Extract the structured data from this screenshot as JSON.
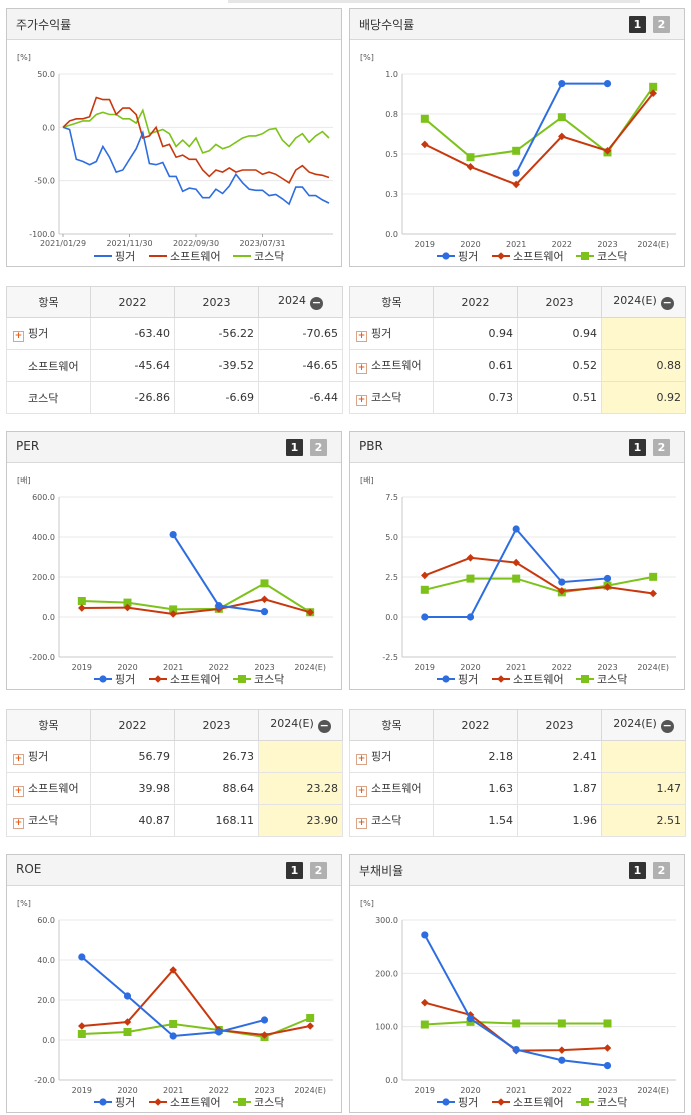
{
  "legend": [
    "핑거",
    "소프트웨어",
    "코스닥"
  ],
  "colors": {
    "s0": "#2d6de0",
    "s1": "#c8380e",
    "s2": "#7cc21a"
  },
  "pager": [
    "1",
    "2"
  ],
  "charts": [
    {
      "id": "stock",
      "title": "주가수익률",
      "unit": "[%]",
      "type": "line",
      "ylim": [
        -100,
        50
      ],
      "yticks": [
        "50.0",
        "0.0",
        "-50.0",
        "-100.0"
      ],
      "xlabels": [
        "2021/01/29",
        "2021/11/30",
        "2022/09/30",
        "2023/07/31"
      ],
      "series": [
        {
          "name": "핑거",
          "values": [
            0,
            -2,
            -30,
            -32,
            -35,
            -32,
            -18,
            -28,
            -42,
            -40,
            -30,
            -20,
            -5,
            -34,
            -35,
            -33,
            -46,
            -46,
            -60,
            -57,
            -58,
            -66,
            -66,
            -58,
            -62,
            -55,
            -44,
            -52,
            -58,
            -59,
            -59,
            -64,
            -63,
            -67,
            -72,
            -56,
            -56,
            -64,
            -64,
            -68,
            -71
          ]
        },
        {
          "name": "소프트웨어",
          "values": [
            0,
            6,
            8,
            8,
            10,
            28,
            26,
            26,
            12,
            18,
            18,
            12,
            -10,
            -8,
            0,
            -18,
            -16,
            -28,
            -26,
            -30,
            -30,
            -40,
            -46,
            -40,
            -42,
            -38,
            -42,
            -40,
            -40,
            -40,
            -44,
            -42,
            -44,
            -48,
            -52,
            -40,
            -36,
            -42,
            -44,
            -45,
            -47
          ]
        },
        {
          "name": "코스닥",
          "values": [
            0,
            2,
            4,
            6,
            6,
            12,
            14,
            12,
            12,
            8,
            8,
            4,
            16,
            -6,
            -4,
            -2,
            -6,
            -18,
            -12,
            -18,
            -10,
            -24,
            -22,
            -16,
            -20,
            -18,
            -14,
            -10,
            -8,
            -8,
            -6,
            -2,
            -1,
            -12,
            -18,
            -10,
            -6,
            -14,
            -8,
            -4,
            -10
          ]
        }
      ]
    },
    {
      "id": "dividend",
      "title": "배당수익률",
      "unit": "[%]",
      "type": "line",
      "ylim": [
        0,
        1
      ],
      "yticks": [
        "1.0",
        "0.8",
        "0.5",
        "0.3",
        "0.0"
      ],
      "categories": [
        "2019",
        "2020",
        "2021",
        "2022",
        "2023",
        "2024(E)"
      ],
      "series": [
        {
          "name": "핑거",
          "values": [
            null,
            null,
            0.38,
            0.94,
            0.94,
            null
          ]
        },
        {
          "name": "소프트웨어",
          "values": [
            0.56,
            0.42,
            0.31,
            0.61,
            0.52,
            0.88
          ]
        },
        {
          "name": "코스닥",
          "values": [
            0.72,
            0.48,
            0.52,
            0.73,
            0.51,
            0.92
          ]
        }
      ]
    },
    {
      "id": "per",
      "title": "PER",
      "unit": "[배]",
      "type": "line",
      "ylim": [
        -200,
        600
      ],
      "yticks": [
        "600.0",
        "400.0",
        "200.0",
        "0.0",
        "-200.0"
      ],
      "categories": [
        "2019",
        "2020",
        "2021",
        "2022",
        "2023",
        "2024(E)"
      ],
      "series": [
        {
          "name": "핑거",
          "values": [
            null,
            null,
            412,
            56.79,
            26.73,
            null
          ]
        },
        {
          "name": "소프트웨어",
          "values": [
            45,
            47,
            15,
            39.98,
            88.64,
            23.28
          ]
        },
        {
          "name": "코스닥",
          "values": [
            80,
            72,
            38,
            40.87,
            168.11,
            23.9
          ]
        }
      ]
    },
    {
      "id": "pbr",
      "title": "PBR",
      "unit": "[배]",
      "type": "line",
      "ylim": [
        -2.5,
        7.5
      ],
      "yticks": [
        "7.5",
        "5.0",
        "2.5",
        "0.0",
        "-2.5"
      ],
      "categories": [
        "2019",
        "2020",
        "2021",
        "2022",
        "2023",
        "2024(E)"
      ],
      "series": [
        {
          "name": "핑거",
          "values": [
            0,
            0,
            5.5,
            2.18,
            2.41,
            null
          ]
        },
        {
          "name": "소프트웨어",
          "values": [
            2.6,
            3.7,
            3.4,
            1.63,
            1.87,
            1.47
          ]
        },
        {
          "name": "코스닥",
          "values": [
            1.7,
            2.4,
            2.4,
            1.54,
            1.96,
            2.51
          ]
        }
      ]
    },
    {
      "id": "roe",
      "title": "ROE",
      "unit": "[%]",
      "type": "line",
      "ylim": [
        -20,
        60
      ],
      "yticks": [
        "60.0",
        "40.0",
        "20.0",
        "0.0",
        "-20.0"
      ],
      "categories": [
        "2019",
        "2020",
        "2021",
        "2022",
        "2023",
        "2024(E)"
      ],
      "series": [
        {
          "name": "핑거",
          "values": [
            41.5,
            22,
            2,
            4,
            10,
            null
          ]
        },
        {
          "name": "소프트웨어",
          "values": [
            7,
            9,
            35,
            5,
            2.5,
            7
          ]
        },
        {
          "name": "코스닥",
          "values": [
            3,
            4,
            8,
            5,
            1.5,
            11
          ]
        }
      ]
    },
    {
      "id": "debt",
      "title": "부채비율",
      "unit": "[%]",
      "type": "line",
      "ylim": [
        0,
        300
      ],
      "yticks": [
        "300.0",
        "200.0",
        "100.0",
        "0.0"
      ],
      "categories": [
        "2019",
        "2020",
        "2021",
        "2022",
        "2023",
        "2024(E)"
      ],
      "series": [
        {
          "name": "핑거",
          "values": [
            272,
            115,
            57,
            37,
            27,
            null
          ]
        },
        {
          "name": "소프트웨어",
          "values": [
            145,
            122,
            55,
            56,
            60,
            null
          ]
        },
        {
          "name": "코스닥",
          "values": [
            104,
            109,
            106,
            106,
            106,
            null
          ]
        }
      ]
    }
  ],
  "tables": {
    "stock": {
      "header": [
        "항목",
        "2022",
        "2023",
        "2024"
      ],
      "rows": [
        {
          "name": "핑거",
          "plus": true,
          "cells": [
            "-63.40",
            "-56.22",
            "-70.65"
          ]
        },
        {
          "name": "소프트웨어",
          "plus": false,
          "cells": [
            "-45.64",
            "-39.52",
            "-46.65"
          ]
        },
        {
          "name": "코스닥",
          "plus": false,
          "cells": [
            "-26.86",
            "-6.69",
            "-6.44"
          ]
        }
      ]
    },
    "dividend": {
      "header": [
        "항목",
        "2022",
        "2023",
        "2024(E)"
      ],
      "rows": [
        {
          "name": "핑거",
          "plus": true,
          "cells": [
            "0.94",
            "0.94",
            ""
          ]
        },
        {
          "name": "소프트웨어",
          "plus": true,
          "cells": [
            "0.61",
            "0.52",
            "0.88"
          ]
        },
        {
          "name": "코스닥",
          "plus": true,
          "cells": [
            "0.73",
            "0.51",
            "0.92"
          ]
        }
      ]
    },
    "per": {
      "header": [
        "항목",
        "2022",
        "2023",
        "2024(E)"
      ],
      "rows": [
        {
          "name": "핑거",
          "plus": true,
          "cells": [
            "56.79",
            "26.73",
            ""
          ]
        },
        {
          "name": "소프트웨어",
          "plus": true,
          "cells": [
            "39.98",
            "88.64",
            "23.28"
          ]
        },
        {
          "name": "코스닥",
          "plus": true,
          "cells": [
            "40.87",
            "168.11",
            "23.90"
          ]
        }
      ]
    },
    "pbr": {
      "header": [
        "항목",
        "2022",
        "2023",
        "2024(E)"
      ],
      "rows": [
        {
          "name": "핑거",
          "plus": true,
          "cells": [
            "2.18",
            "2.41",
            ""
          ]
        },
        {
          "name": "소프트웨어",
          "plus": true,
          "cells": [
            "1.63",
            "1.87",
            "1.47"
          ]
        },
        {
          "name": "코스닥",
          "plus": true,
          "cells": [
            "1.54",
            "1.96",
            "2.51"
          ]
        }
      ]
    }
  }
}
